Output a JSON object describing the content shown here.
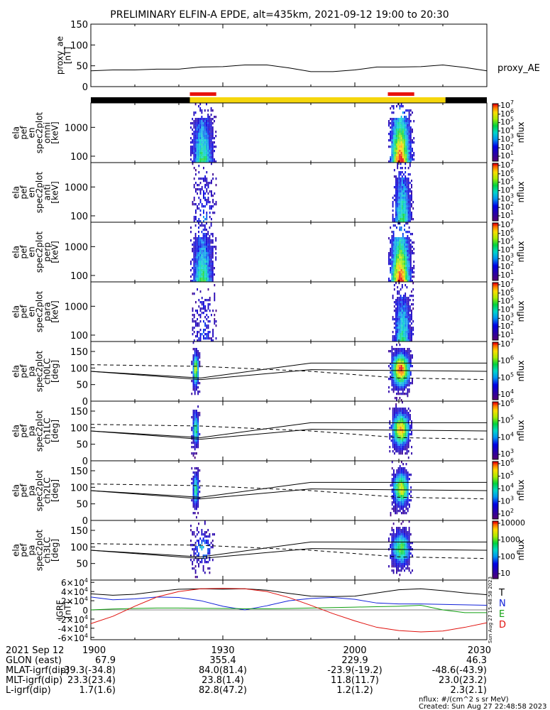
{
  "title": "PRELIMINARY ELFIN-A EPDE, alt=435km, 2021-09-12 19:00 to 20:30",
  "chart_data": [
    {
      "type": "line",
      "name": "proxy_ae",
      "ylabel_lines": [
        "proxy_ae",
        "[nT]"
      ],
      "legend": "proxy_AE",
      "ylim": [
        0,
        150
      ],
      "yticks": [
        0,
        50,
        100,
        150
      ],
      "xlim_min": [
        0,
        90
      ],
      "series": [
        {
          "name": "proxy_AE",
          "x": [
            0,
            5,
            10,
            15,
            20,
            25,
            30,
            35,
            40,
            45,
            50,
            55,
            60,
            65,
            70,
            75,
            80,
            85,
            90
          ],
          "y": [
            38,
            40,
            40,
            42,
            42,
            47,
            48,
            52,
            52,
            45,
            36,
            36,
            40,
            47,
            47,
            48,
            52,
            46,
            38
          ]
        }
      ]
    },
    {
      "type": "bar",
      "name": "science-zone-bar",
      "segments": [
        {
          "start": 0,
          "end": 22.5,
          "color": "#000000"
        },
        {
          "start": 22.5,
          "end": 80.6,
          "color": "#f5d60c"
        },
        {
          "start": 80.6,
          "end": 90,
          "color": "#000000"
        }
      ],
      "markers": [
        {
          "start": 22.5,
          "end": 28.5,
          "color": "#e8130c"
        },
        {
          "start": 67.5,
          "end": 73.5,
          "color": "#e8130c"
        }
      ]
    },
    {
      "type": "heatmap",
      "name": "ela_pef_en_spec2plot_omni",
      "ylabel_lines": [
        "ela",
        "pef",
        "en",
        "spec2plot",
        "omni",
        "[keV]"
      ],
      "yscale": "log",
      "ylim": [
        60,
        7000
      ],
      "yticks": [
        100,
        1000
      ],
      "colorbar": {
        "label": "nflux",
        "ticks": [
          "10^7",
          "10^6",
          "10^5",
          "10^4",
          "10^3",
          "10^2",
          "10^1"
        ]
      },
      "passes": [
        {
          "start": 22.6,
          "end": 28.5,
          "intensity": 0.55
        },
        {
          "start": 67.6,
          "end": 73.4,
          "intensity": 1.0
        }
      ]
    },
    {
      "type": "heatmap",
      "name": "ela_pef_en_spec2plot_anti",
      "ylabel_lines": [
        "ela",
        "pef",
        "en",
        "spec2plot",
        "anti",
        "[keV]"
      ],
      "yscale": "log",
      "ylim": [
        60,
        7000
      ],
      "yticks": [
        100,
        1000
      ],
      "colorbar": {
        "label": "nflux",
        "ticks": [
          "10^7",
          "10^6",
          "10^5",
          "10^4",
          "10^3",
          "10^2",
          "10^1"
        ]
      },
      "passes": [
        {
          "start": 23.0,
          "end": 28.5,
          "intensity": 0.25
        },
        {
          "start": 68.5,
          "end": 73.4,
          "intensity": 0.55
        }
      ]
    },
    {
      "type": "heatmap",
      "name": "ela_pef_en_spec2plot_perp",
      "ylabel_lines": [
        "ela",
        "pef",
        "en",
        "spec2plot",
        "perp",
        "[keV]"
      ],
      "yscale": "log",
      "ylim": [
        60,
        7000
      ],
      "yticks": [
        100,
        1000
      ],
      "colorbar": {
        "label": "nflux",
        "ticks": [
          "10^7",
          "10^6",
          "10^5",
          "10^4",
          "10^3",
          "10^2",
          "10^1"
        ]
      },
      "passes": [
        {
          "start": 22.6,
          "end": 28.5,
          "intensity": 0.55
        },
        {
          "start": 67.6,
          "end": 73.4,
          "intensity": 1.0
        }
      ]
    },
    {
      "type": "heatmap",
      "name": "ela_pef_en_spec2plot_para",
      "ylabel_lines": [
        "ela",
        "pef",
        "en",
        "spec2plot",
        "para",
        "[keV]"
      ],
      "yscale": "log",
      "ylim": [
        60,
        7000
      ],
      "yticks": [
        100,
        1000
      ],
      "colorbar": {
        "label": "nflux",
        "ticks": [
          "10^7",
          "10^6",
          "10^5",
          "10^4",
          "10^3",
          "10^2",
          "10^1"
        ]
      },
      "passes": [
        {
          "start": 23.0,
          "end": 28.5,
          "intensity": 0.22
        },
        {
          "start": 68.5,
          "end": 73.4,
          "intensity": 0.5
        }
      ]
    },
    {
      "type": "heatmap",
      "name": "ela_pef_pa_spec2plot_ch0LC",
      "ylabel_lines": [
        "ela",
        "pef",
        "pa",
        "spec2plot",
        "ch0LC",
        "[deg]"
      ],
      "ylim": [
        0,
        180
      ],
      "yticks": [
        0,
        50,
        100,
        150
      ],
      "colorbar": {
        "label": "nflux",
        "ticks": [
          "10^7",
          "10^6",
          "10^5",
          "10^4"
        ]
      },
      "passes": [
        {
          "start": 22.8,
          "end": 24.6,
          "intensity": 0.7
        },
        {
          "start": 67.6,
          "end": 73.0,
          "intensity": 0.95
        }
      ]
    },
    {
      "type": "heatmap",
      "name": "ela_pef_pa_spec2plot_ch1LC",
      "ylabel_lines": [
        "ela",
        "pef",
        "pa",
        "spec2plot",
        "ch1LC",
        "[deg]"
      ],
      "ylim": [
        0,
        180
      ],
      "yticks": [
        0,
        50,
        100,
        150
      ],
      "colorbar": {
        "label": "nflux",
        "ticks": [
          "10^6",
          "10^5",
          "10^4",
          "10^3"
        ]
      },
      "passes": [
        {
          "start": 22.8,
          "end": 24.6,
          "intensity": 0.55
        },
        {
          "start": 67.8,
          "end": 72.8,
          "intensity": 0.85
        }
      ]
    },
    {
      "type": "heatmap",
      "name": "ela_pef_pa_spec2plot_ch2LC",
      "ylabel_lines": [
        "ela",
        "pef",
        "pa",
        "spec2plot",
        "ch2LC",
        "[deg]"
      ],
      "ylim": [
        0,
        180
      ],
      "yticks": [
        0,
        50,
        100,
        150
      ],
      "colorbar": {
        "label": "nflux",
        "ticks": [
          "10^6",
          "10^5",
          "10^4",
          "10^3",
          "10^2"
        ]
      },
      "passes": [
        {
          "start": 22.8,
          "end": 24.6,
          "intensity": 0.5
        },
        {
          "start": 68.0,
          "end": 72.8,
          "intensity": 0.75
        }
      ]
    },
    {
      "type": "heatmap",
      "name": "ela_pef_pa_spec2plot_ch3LC",
      "ylabel_lines": [
        "ela",
        "pef",
        "pa",
        "spec2plot",
        "ch3LC",
        "[deg]"
      ],
      "ylim": [
        0,
        180
      ],
      "yticks": [
        50,
        100,
        150
      ],
      "colorbar": {
        "label": "nflux",
        "ticks": [
          "10000",
          "1000",
          "100",
          "10"
        ]
      },
      "passes": [
        {
          "start": 22.6,
          "end": 28.0,
          "intensity": 0.35
        },
        {
          "start": 67.6,
          "end": 73.0,
          "intensity": 0.6
        }
      ]
    },
    {
      "type": "line",
      "name": "IGRF",
      "ylabel_lines": [
        "IGRF",
        "[nT]"
      ],
      "ylim": [
        -65000,
        65000
      ],
      "yticks": [
        "6×10^4",
        "4×10^4",
        "2×10^4",
        "0",
        "-2×10^4",
        "-4×10^4",
        "-6×10^4"
      ],
      "legend": [
        "T",
        "N",
        "E",
        "D"
      ],
      "side_note": "Sun Aug 27 15:48:58 2023",
      "series": [
        {
          "name": "T",
          "color": "#000000",
          "x": [
            0,
            5,
            10,
            15,
            20,
            25,
            30,
            35,
            40,
            45,
            50,
            55,
            60,
            65,
            70,
            75,
            80,
            85,
            90
          ],
          "y": [
            35000,
            32000,
            34000,
            40000,
            45000,
            46000,
            45000,
            46000,
            43000,
            36000,
            30000,
            29000,
            30000,
            37000,
            44000,
            46000,
            42000,
            37000,
            33000
          ]
        },
        {
          "name": "N",
          "color": "#1020d8",
          "x": [
            0,
            5,
            10,
            15,
            20,
            25,
            30,
            35,
            40,
            45,
            50,
            55,
            60,
            65,
            70,
            75,
            80,
            85,
            90
          ],
          "y": [
            28000,
            22000,
            24000,
            28000,
            27000,
            20000,
            8000,
            0,
            9000,
            20000,
            25000,
            27000,
            23000,
            15000,
            13000,
            13000,
            12000,
            11000,
            10000
          ]
        },
        {
          "name": "E",
          "color": "#10a010",
          "x": [
            0,
            5,
            10,
            15,
            20,
            25,
            30,
            35,
            40,
            45,
            50,
            55,
            60,
            65,
            70,
            75,
            80,
            85,
            90
          ],
          "y": [
            0,
            2000,
            3000,
            4000,
            4000,
            3500,
            3000,
            2500,
            2500,
            3000,
            4000,
            5000,
            6000,
            7000,
            8000,
            10000,
            0,
            -6000,
            -6000
          ]
        },
        {
          "name": "D",
          "color": "#e0100c",
          "x": [
            0,
            5,
            10,
            15,
            20,
            25,
            30,
            35,
            40,
            45,
            50,
            55,
            60,
            65,
            70,
            75,
            80,
            85,
            90
          ],
          "y": [
            -30000,
            -14000,
            8000,
            28000,
            40000,
            46000,
            47000,
            46000,
            40000,
            27000,
            10000,
            -8000,
            -24000,
            -38000,
            -45000,
            -48000,
            -46000,
            -38000,
            -28000
          ]
        }
      ]
    }
  ],
  "xaxis": {
    "date_label": "2021 Sep 12",
    "tick_labels": [
      "1900",
      "1930",
      "2000",
      "2030"
    ],
    "tick_minutes": [
      0,
      30,
      60,
      90
    ],
    "rows": [
      {
        "label": "GLON (east)",
        "values": [
          "67.9",
          "355.4",
          "229.9",
          "46.3"
        ]
      },
      {
        "label": "MLAT-igrf(dip)",
        "values": [
          "-39.3(-34.8)",
          "84.0(81.4)",
          "-23.9(-19.2)",
          "-48.6(-43.9)"
        ]
      },
      {
        "label": "MLT-igrf(dip)",
        "values": [
          "23.3(23.4)",
          "23.8(1.4)",
          "11.8(11.7)",
          "23.0(23.2)"
        ]
      },
      {
        "label": "L-igrf(dip)",
        "values": [
          "1.7(1.6)",
          "82.8(47.2)",
          "1.2(1.2)",
          "2.3(2.1)"
        ]
      }
    ]
  },
  "footer": {
    "units": "nflux: #/(cm^2 s sr MeV)",
    "created": "Created: Sun Aug 27 22:48:58 2023"
  }
}
